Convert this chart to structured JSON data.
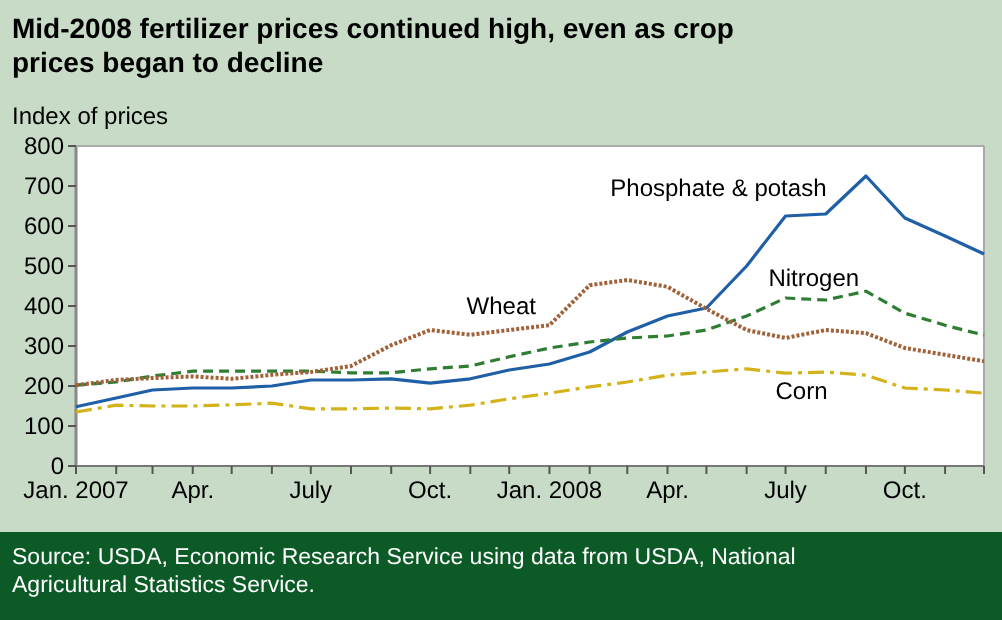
{
  "chart_data": {
    "type": "line",
    "title": "Mid-2008 fertilizer prices continued high, even as crop prices began to decline",
    "ylabel": "Index of prices",
    "x": [
      "2007-01",
      "2007-02",
      "2007-03",
      "2007-04",
      "2007-05",
      "2007-06",
      "2007-07",
      "2007-08",
      "2007-09",
      "2007-10",
      "2007-11",
      "2007-12",
      "2008-01",
      "2008-02",
      "2008-03",
      "2008-04",
      "2008-05",
      "2008-06",
      "2008-07",
      "2008-08",
      "2008-09",
      "2008-10",
      "2008-11",
      "2008-12"
    ],
    "series": [
      {
        "name": "Phosphate & potash",
        "color": "#1f5fa6",
        "line_style": "solid",
        "values": [
          148,
          170,
          190,
          195,
          195,
          200,
          215,
          215,
          218,
          207,
          218,
          240,
          255,
          285,
          335,
          375,
          395,
          500,
          625,
          630,
          725,
          620,
          575,
          530
        ]
      },
      {
        "name": "Nitrogen",
        "color": "#2e7d32",
        "line_style": "dashed",
        "values": [
          202,
          210,
          225,
          237,
          237,
          237,
          237,
          233,
          233,
          243,
          250,
          273,
          295,
          310,
          320,
          325,
          340,
          375,
          420,
          415,
          437,
          382,
          352,
          327
        ]
      },
      {
        "name": "Wheat",
        "color": "#a0623a",
        "line_style": "dotted",
        "values": [
          202,
          215,
          220,
          224,
          218,
          228,
          235,
          250,
          302,
          340,
          328,
          340,
          352,
          452,
          465,
          448,
          393,
          340,
          320,
          340,
          332,
          295,
          278,
          262
        ]
      },
      {
        "name": "Corn",
        "color": "#d4b21a",
        "line_style": "dashdot",
        "values": [
          135,
          152,
          150,
          150,
          153,
          157,
          143,
          143,
          145,
          143,
          152,
          168,
          182,
          198,
          210,
          227,
          235,
          243,
          232,
          235,
          227,
          195,
          190,
          182
        ]
      }
    ],
    "xlim": [
      "2007-01",
      "2008-12"
    ],
    "xticks": [
      {
        "value": "2007-01",
        "label": "Jan. 2007"
      },
      {
        "value": "2007-02",
        "label": null
      },
      {
        "value": "2007-03",
        "label": null
      },
      {
        "value": "2007-04",
        "label": "Apr."
      },
      {
        "value": "2007-05",
        "label": null
      },
      {
        "value": "2007-06",
        "label": null
      },
      {
        "value": "2007-07",
        "label": "July"
      },
      {
        "value": "2007-08",
        "label": null
      },
      {
        "value": "2007-09",
        "label": null
      },
      {
        "value": "2007-10",
        "label": "Oct."
      },
      {
        "value": "2007-11",
        "label": null
      },
      {
        "value": "2007-12",
        "label": null
      },
      {
        "value": "2008-01",
        "label": "Jan. 2008"
      },
      {
        "value": "2008-02",
        "label": null
      },
      {
        "value": "2008-03",
        "label": null
      },
      {
        "value": "2008-04",
        "label": "Apr."
      },
      {
        "value": "2008-05",
        "label": null
      },
      {
        "value": "2008-06",
        "label": null
      },
      {
        "value": "2008-07",
        "label": "July"
      },
      {
        "value": "2008-08",
        "label": null
      },
      {
        "value": "2008-09",
        "label": null
      },
      {
        "value": "2008-10",
        "label": "Oct."
      },
      {
        "value": "2008-11",
        "label": null
      },
      {
        "value": "2008-12",
        "label": null
      }
    ],
    "ylim": [
      0,
      800
    ],
    "yticks": [
      0,
      100,
      200,
      300,
      400,
      500,
      600,
      700,
      800
    ],
    "grid": false,
    "legend": false,
    "marker": "none",
    "annotations": [
      "Source:  USDA, Economic Research Service using data from USDA, National Agricultural Statistics Service."
    ]
  }
}
